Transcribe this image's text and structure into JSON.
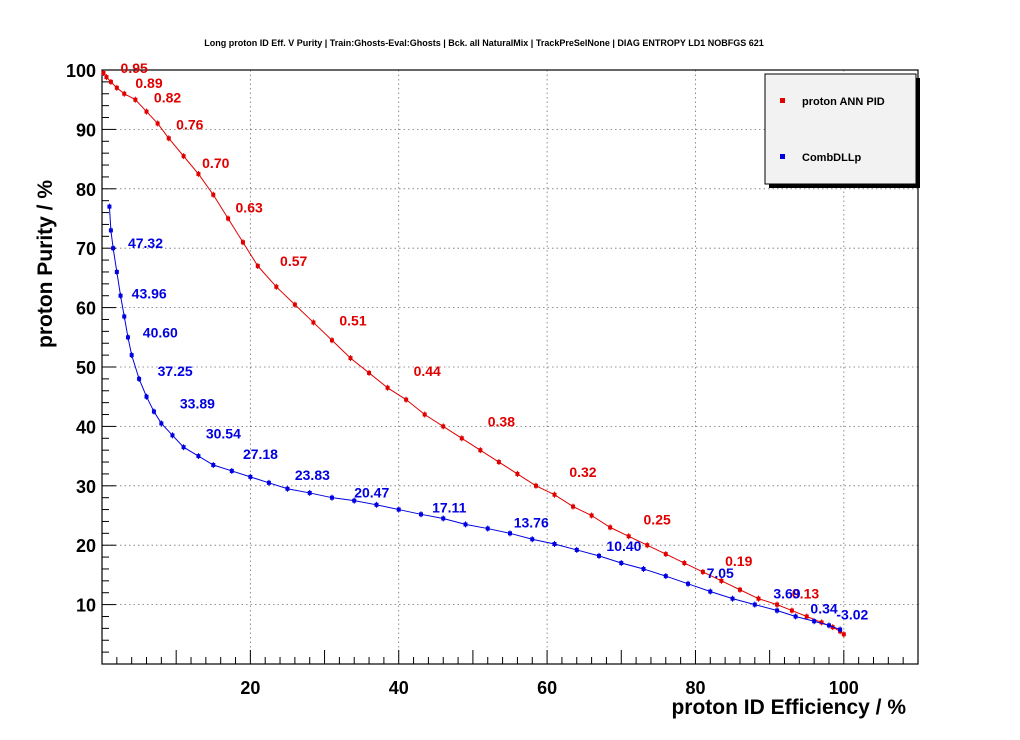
{
  "chart_data": {
    "type": "line",
    "title": "Long proton ID Eff. V Purity | Train:Ghosts-Eval:Ghosts | Bck. all NaturalMix | TrackPreSelNone | DIAG ENTROPY LD1 NOBFGS 621",
    "xlabel": "proton ID Efficiency / %",
    "ylabel": "proton Purity / %",
    "xlim": [
      0,
      110
    ],
    "ylim": [
      0,
      100
    ],
    "xticks": [
      20,
      40,
      60,
      80,
      100
    ],
    "yticks": [
      10,
      20,
      30,
      40,
      50,
      60,
      70,
      80,
      90,
      100
    ],
    "grid": true,
    "legend_position": "top-right",
    "series": [
      {
        "name": "proton ANN PID",
        "color": "#e00000",
        "x": [
          0.2,
          0.6,
          1.2,
          2.0,
          3.0,
          4.5,
          6.0,
          7.5,
          9.0,
          11.0,
          13.0,
          15.0,
          17.0,
          19.0,
          21.0,
          23.5,
          26.0,
          28.5,
          31.0,
          33.5,
          36.0,
          38.5,
          41.0,
          43.5,
          46.0,
          48.5,
          51.0,
          53.5,
          56.0,
          58.5,
          61.0,
          63.5,
          66.0,
          68.5,
          71.0,
          73.5,
          76.0,
          78.5,
          81.0,
          83.5,
          86.0,
          88.5,
          91.0,
          93.0,
          95.0,
          97.0,
          98.5,
          99.5,
          100.0
        ],
        "y": [
          99.5,
          98.8,
          98.0,
          97.0,
          96.0,
          95.0,
          93.0,
          91.0,
          88.5,
          85.5,
          82.5,
          79.0,
          75.0,
          71.0,
          67.0,
          63.5,
          60.5,
          57.5,
          54.5,
          51.5,
          49.0,
          46.5,
          44.5,
          42.0,
          40.0,
          38.0,
          36.0,
          34.0,
          32.0,
          30.0,
          28.5,
          26.5,
          25.0,
          23.0,
          21.5,
          20.0,
          18.5,
          17.0,
          15.5,
          14.0,
          12.5,
          11.0,
          10.0,
          9.0,
          8.0,
          7.0,
          6.2,
          5.5,
          5.0
        ],
        "cut_labels": [
          {
            "text": "0.95",
            "x": 2.5,
            "y": 99.5
          },
          {
            "text": "0.89",
            "x": 4.5,
            "y": 97.0
          },
          {
            "text": "0.82",
            "x": 7.0,
            "y": 94.5
          },
          {
            "text": "0.76",
            "x": 10.0,
            "y": 90.0
          },
          {
            "text": "0.70",
            "x": 13.5,
            "y": 83.5
          },
          {
            "text": "0.63",
            "x": 18.0,
            "y": 76.0
          },
          {
            "text": "0.57",
            "x": 24.0,
            "y": 67.0
          },
          {
            "text": "0.51",
            "x": 32.0,
            "y": 57.0
          },
          {
            "text": "0.44",
            "x": 42.0,
            "y": 48.5
          },
          {
            "text": "0.38",
            "x": 52.0,
            "y": 40.0
          },
          {
            "text": "0.32",
            "x": 63.0,
            "y": 31.5
          },
          {
            "text": "0.25",
            "x": 73.0,
            "y": 23.5
          },
          {
            "text": "0.19",
            "x": 84.0,
            "y": 16.5
          },
          {
            "text": "0.13",
            "x": 93.0,
            "y": 11.0
          }
        ]
      },
      {
        "name": "CombDLLp",
        "color": "#0000e0",
        "x": [
          1.0,
          1.2,
          1.5,
          2.0,
          2.5,
          3.0,
          3.5,
          4.0,
          5.0,
          6.0,
          7.0,
          8.0,
          9.5,
          11.0,
          13.0,
          15.0,
          17.5,
          20.0,
          22.5,
          25.0,
          28.0,
          31.0,
          34.0,
          37.0,
          40.0,
          43.0,
          46.0,
          49.0,
          52.0,
          55.0,
          58.0,
          61.0,
          64.0,
          67.0,
          70.0,
          73.0,
          76.0,
          79.0,
          82.0,
          85.0,
          88.0,
          91.0,
          93.5,
          96.0,
          98.0,
          99.5
        ],
        "y": [
          77.0,
          73.0,
          70.0,
          66.0,
          62.0,
          58.5,
          55.0,
          52.0,
          48.0,
          45.0,
          42.5,
          40.5,
          38.5,
          36.5,
          35.0,
          33.5,
          32.5,
          31.5,
          30.5,
          29.5,
          28.8,
          28.0,
          27.5,
          26.8,
          26.0,
          25.2,
          24.5,
          23.5,
          22.8,
          22.0,
          21.0,
          20.2,
          19.2,
          18.2,
          17.0,
          16.0,
          14.8,
          13.5,
          12.2,
          11.0,
          10.0,
          9.0,
          8.0,
          7.2,
          6.5,
          5.8
        ],
        "cut_labels": [
          {
            "text": "47.32",
            "x": 3.5,
            "y": 70.0
          },
          {
            "text": "43.96",
            "x": 4.0,
            "y": 61.5
          },
          {
            "text": "40.60",
            "x": 5.5,
            "y": 55.0
          },
          {
            "text": "37.25",
            "x": 7.5,
            "y": 48.5
          },
          {
            "text": "33.89",
            "x": 10.5,
            "y": 43.0
          },
          {
            "text": "30.54",
            "x": 14.0,
            "y": 38.0
          },
          {
            "text": "27.18",
            "x": 19.0,
            "y": 34.5
          },
          {
            "text": "23.83",
            "x": 26.0,
            "y": 31.0
          },
          {
            "text": "20.47",
            "x": 34.0,
            "y": 28.0
          },
          {
            "text": "17.11",
            "x": 44.5,
            "y": 25.5
          },
          {
            "text": "13.76",
            "x": 55.5,
            "y": 23.0
          },
          {
            "text": "10.40",
            "x": 68.0,
            "y": 19.0
          },
          {
            "text": "7.05",
            "x": 81.5,
            "y": 14.5
          },
          {
            "text": "3.69",
            "x": 90.5,
            "y": 11.0
          },
          {
            "text": "0.34",
            "x": 95.5,
            "y": 8.5
          },
          {
            "text": "-3.02",
            "x": 99.0,
            "y": 7.5
          }
        ]
      }
    ]
  }
}
